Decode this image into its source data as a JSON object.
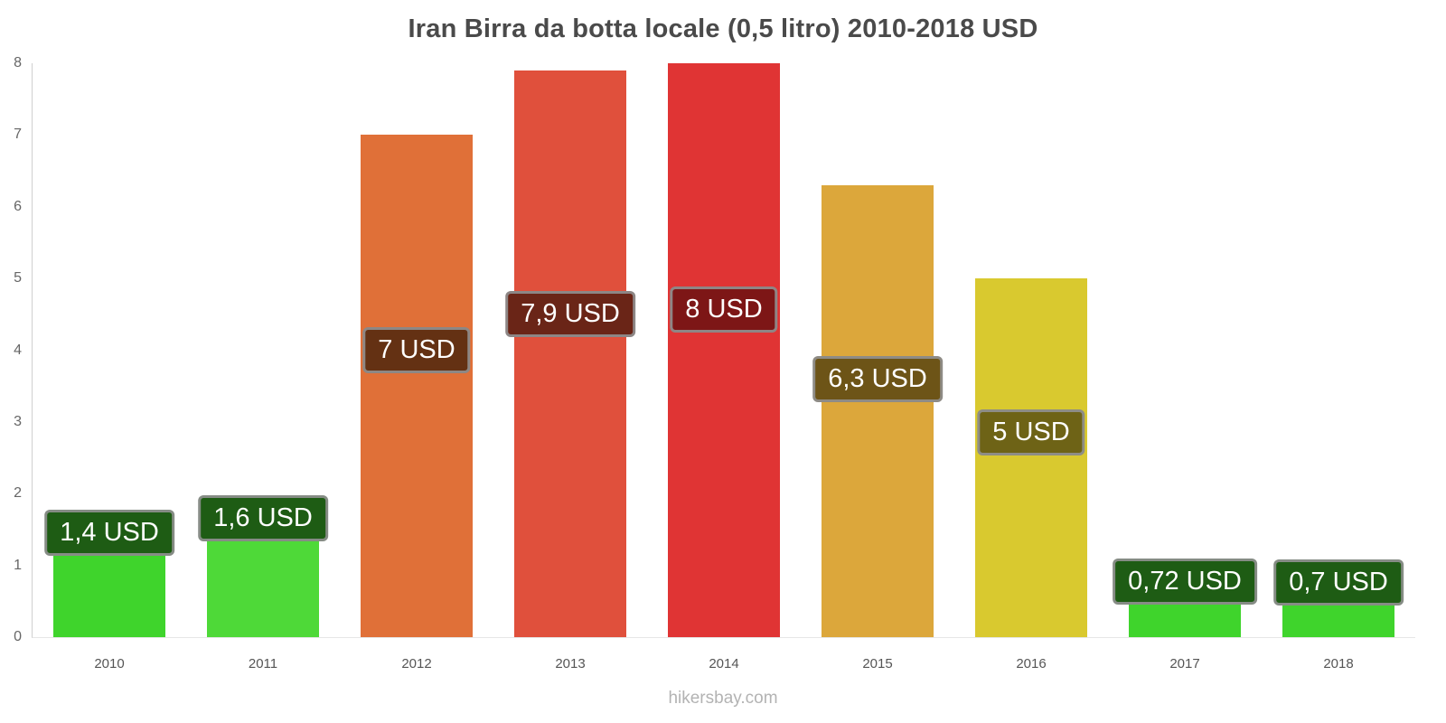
{
  "title": "Iran Birra da botta locale (0,5 litro) 2010-2018 USD",
  "footer": "hikersbay.com",
  "y_axis": {
    "ticks": [
      8,
      7,
      6,
      5,
      4,
      3,
      2,
      1,
      0
    ]
  },
  "chart_data": {
    "type": "bar",
    "title": "Iran Birra da botta locale (0,5 litro) 2010-2018 USD",
    "categories": [
      "2010",
      "2011",
      "2012",
      "2013",
      "2014",
      "2015",
      "2016",
      "2017",
      "2018"
    ],
    "values": [
      1.4,
      1.6,
      7,
      7.9,
      8,
      6.3,
      5,
      0.72,
      0.7
    ],
    "labels": [
      "1,4 USD",
      "1,6 USD",
      "7 USD",
      "7,9 USD",
      "8 USD",
      "6,3 USD",
      "5 USD",
      "0,72 USD",
      "0,7 USD"
    ],
    "colors": [
      "#3fd42c",
      "#4ed938",
      "#e07038",
      "#e0503c",
      "#e03434",
      "#dca73b",
      "#d9c92f",
      "#3fd42c",
      "#3fd42c"
    ],
    "label_bg": [
      "#1e5c14",
      "#1e5c14",
      "#643113",
      "#6a2517",
      "#7d1616",
      "#6d5417",
      "#6e6316",
      "#1e5c14",
      "#1e5c14"
    ],
    "xlabel": "",
    "ylabel": "",
    "ylim": [
      0,
      8
    ],
    "currency": "USD",
    "grid": false,
    "legend": false
  }
}
